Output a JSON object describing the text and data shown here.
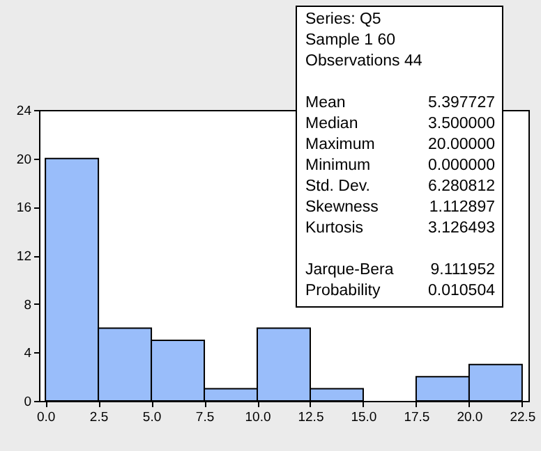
{
  "chart_data": {
    "type": "histogram",
    "bins": [
      0,
      2.5,
      5,
      7.5,
      10,
      12.5,
      15,
      17.5,
      20,
      22.5
    ],
    "values": [
      20,
      6,
      5,
      1,
      6,
      1,
      0,
      2,
      3
    ],
    "color": "#99bdfa",
    "xlim": [
      -0.3,
      22.8
    ],
    "ylim": [
      0,
      24
    ],
    "xticks": [
      {
        "value": 0,
        "label": "0.0"
      },
      {
        "value": 2.5,
        "label": "2.5"
      },
      {
        "value": 5,
        "label": "5.0"
      },
      {
        "value": 7.5,
        "label": "7.5"
      },
      {
        "value": 10,
        "label": "10.0"
      },
      {
        "value": 12.5,
        "label": "12.5"
      },
      {
        "value": 15,
        "label": "15.0"
      },
      {
        "value": 17.5,
        "label": "17.5"
      },
      {
        "value": 20,
        "label": "20.0"
      },
      {
        "value": 22.5,
        "label": "22.5"
      }
    ],
    "yticks": [
      0,
      4,
      8,
      12,
      16,
      20,
      24
    ],
    "grid": false,
    "annotations": [
      "Series: Q5",
      "Sample 1 60",
      "Observations 44",
      "Mean 5.397727",
      "Median 3.500000",
      "Maximum 20.00000",
      "Minimum 0.000000",
      "Std. Dev. 6.280812",
      "Skewness 1.112897",
      "Kurtosis 3.126493",
      "Jarque-Bera 9.111952",
      "Probability 0.010504"
    ]
  }
}
